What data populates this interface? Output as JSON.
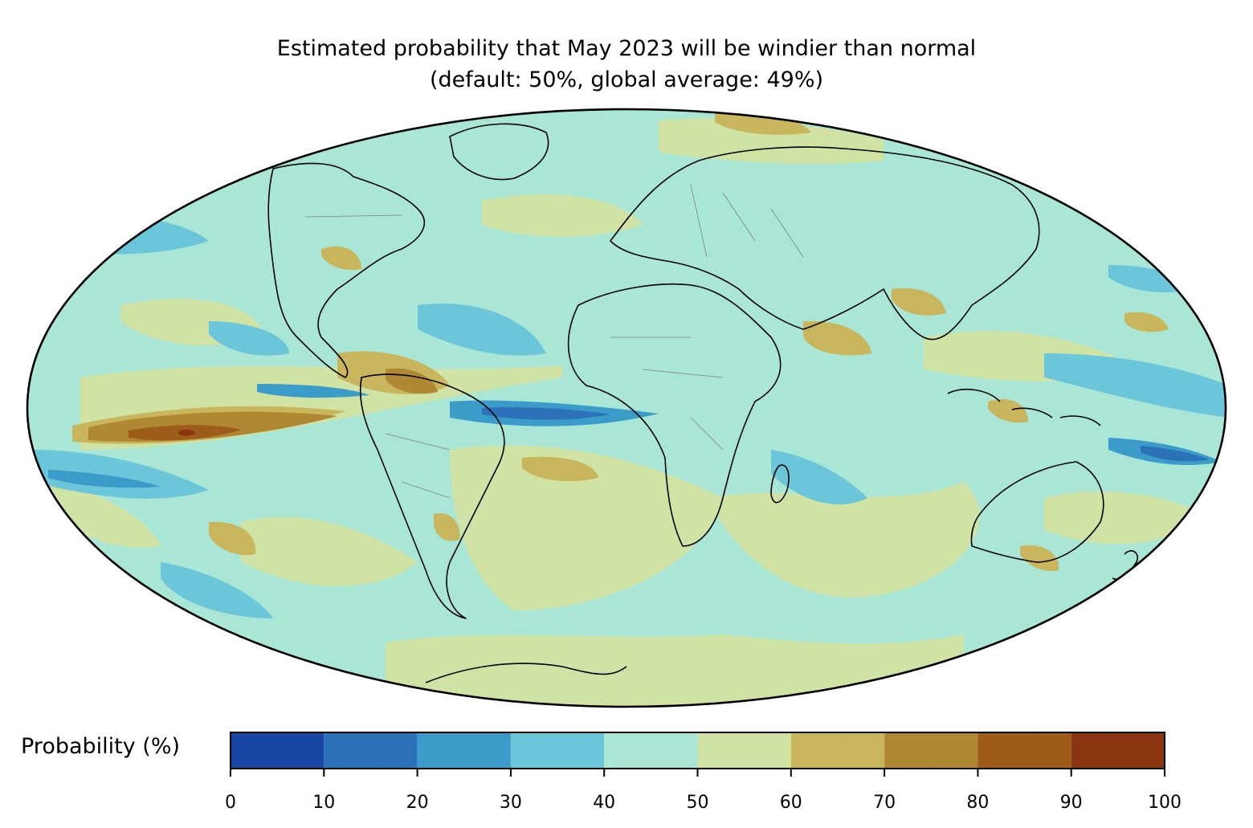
{
  "title": "Estimated probability that May 2023 will be windier than normal",
  "subtitle": "(default: 50%, global average: 49%)",
  "projection": "mollweide",
  "colorbar": {
    "label": "Probability (%)",
    "ticks": [
      "0",
      "10",
      "20",
      "30",
      "40",
      "50",
      "60",
      "70",
      "80",
      "90",
      "100"
    ],
    "bins": [
      {
        "min": 0,
        "max": 10,
        "color": "#1a47a3"
      },
      {
        "min": 10,
        "max": 20,
        "color": "#2c72b8"
      },
      {
        "min": 20,
        "max": 30,
        "color": "#3c9cc9"
      },
      {
        "min": 30,
        "max": 40,
        "color": "#6bc6d9"
      },
      {
        "min": 40,
        "max": 50,
        "color": "#a9e6d6"
      },
      {
        "min": 50,
        "max": 60,
        "color": "#d0e3a5"
      },
      {
        "min": 60,
        "max": 70,
        "color": "#c8b55c"
      },
      {
        "min": 70,
        "max": 80,
        "color": "#b08732"
      },
      {
        "min": 80,
        "max": 90,
        "color": "#9e5c1b"
      },
      {
        "min": 90,
        "max": 100,
        "color": "#8b3410"
      }
    ]
  },
  "colors": {
    "background_field": "#a9e6d6",
    "coastline": "#000000",
    "borders": "#808080"
  }
}
